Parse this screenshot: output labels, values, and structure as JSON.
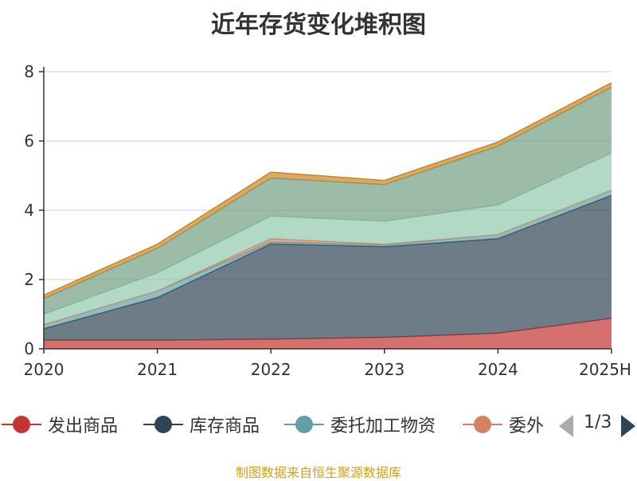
{
  "chart_data": {
    "type": "area",
    "stacked": true,
    "title": "近年存货变化堆积图",
    "x": [
      "2020",
      "2021",
      "2022",
      "2023",
      "2024",
      "2025H"
    ],
    "ylim": [
      0,
      8
    ],
    "yticks": [
      "0",
      "2",
      "4",
      "6",
      "8"
    ],
    "grid": true,
    "legend_position": "bottom",
    "series": [
      {
        "name": "发出商品",
        "color": "#c23531",
        "values": [
          0.25,
          0.25,
          0.28,
          0.33,
          0.45,
          0.88
        ]
      },
      {
        "name": "库存商品",
        "color": "#2f4554",
        "values": [
          0.33,
          1.23,
          2.75,
          2.62,
          2.73,
          3.55
        ]
      },
      {
        "name": "委托加工物资",
        "color": "#61a0a8",
        "values": [
          0.12,
          0.19,
          0.05,
          0.05,
          0.12,
          0.15
        ]
      },
      {
        "name": "委外",
        "color": "#d48265",
        "values": [
          0.0,
          0.0,
          0.1,
          0.02,
          0.0,
          0.0
        ]
      },
      {
        "name": "",
        "color": "#91c7ae",
        "values": [
          0.3,
          0.52,
          0.65,
          0.66,
          0.85,
          1.07
        ]
      },
      {
        "name": "",
        "color": "#749f83",
        "values": [
          0.45,
          0.71,
          1.1,
          1.06,
          1.7,
          1.9
        ]
      },
      {
        "name": "",
        "color": "#ca8622",
        "values": [
          0.1,
          0.12,
          0.17,
          0.12,
          0.12,
          0.13
        ]
      }
    ]
  },
  "legend": {
    "items": [
      {
        "label": "发出商品",
        "color": "#c23531"
      },
      {
        "label": "库存商品",
        "color": "#2f4554"
      },
      {
        "label": "委托加工物资",
        "color": "#61a0a8"
      },
      {
        "label": "委外",
        "color": "#d48265"
      }
    ],
    "page_indicator": "1/3",
    "prev_color": "#aaaaaa",
    "next_color": "#2f4554"
  },
  "source_note": "制图数据来自恒生聚源数据库"
}
